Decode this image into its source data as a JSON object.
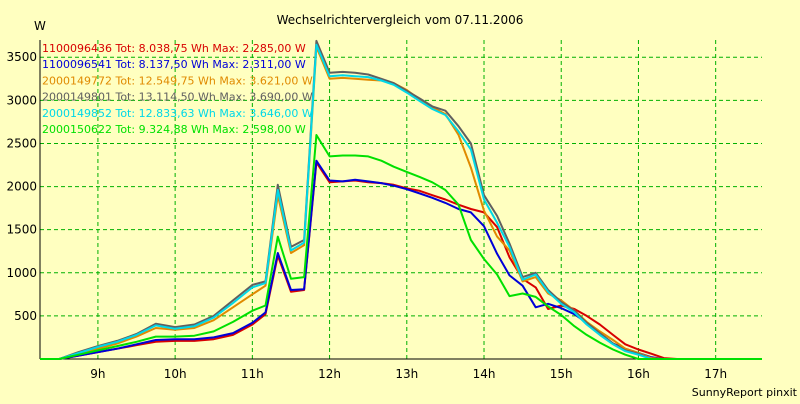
{
  "chart_data": {
    "type": "line",
    "title": "Wechselrichtervergleich vom 07.11.2006",
    "ylabel": "W",
    "footer": "SunnyReport pinxit",
    "xlim": [
      8.25,
      17.6
    ],
    "ylim": [
      0,
      3700
    ],
    "y_ticks": [
      500,
      1000,
      1500,
      2000,
      2500,
      3000,
      3500
    ],
    "x_ticks": [
      {
        "value": 9,
        "label": "9h"
      },
      {
        "value": 10,
        "label": "10h"
      },
      {
        "value": 11,
        "label": "11h"
      },
      {
        "value": 12,
        "label": "12h"
      },
      {
        "value": 13,
        "label": "13h"
      },
      {
        "value": 14,
        "label": "14h"
      },
      {
        "value": 15,
        "label": "15h"
      },
      {
        "value": 16,
        "label": "16h"
      },
      {
        "value": 17,
        "label": "17h"
      }
    ],
    "grid": true,
    "legend_position": "top-left",
    "x": [
      8.25,
      8.5,
      8.75,
      9.0,
      9.25,
      9.5,
      9.75,
      10.0,
      10.25,
      10.5,
      10.75,
      11.0,
      11.17,
      11.33,
      11.5,
      11.67,
      11.83,
      12.0,
      12.17,
      12.33,
      12.5,
      12.67,
      12.83,
      13.0,
      13.17,
      13.33,
      13.5,
      13.67,
      13.83,
      14.0,
      14.17,
      14.33,
      14.5,
      14.67,
      14.83,
      15.0,
      15.17,
      15.33,
      15.5,
      15.67,
      15.83,
      16.0,
      16.17,
      16.33,
      16.5,
      16.67,
      16.83,
      17.0,
      17.17,
      17.33,
      17.6
    ],
    "series": [
      {
        "name": "1100096436",
        "legend": "1100096436 Tot: 8.038,75 Wh Max: 2.285,00 W",
        "color": "#d80000",
        "values": [
          0,
          0,
          40,
          80,
          120,
          160,
          200,
          210,
          210,
          230,
          280,
          400,
          520,
          1200,
          780,
          800,
          2280,
          2050,
          2060,
          2070,
          2050,
          2040,
          2020,
          1980,
          1950,
          1900,
          1850,
          1790,
          1740,
          1700,
          1530,
          1180,
          930,
          830,
          580,
          620,
          580,
          500,
          400,
          280,
          170,
          110,
          60,
          10,
          0,
          0,
          0,
          0,
          0,
          0,
          0
        ]
      },
      {
        "name": "1100096541",
        "legend": "1100096541 Tot: 8.137,50 Wh Max: 2.311,00 W",
        "color": "#0000d8",
        "values": [
          0,
          0,
          40,
          80,
          120,
          170,
          220,
          230,
          230,
          250,
          300,
          420,
          540,
          1230,
          800,
          810,
          2300,
          2070,
          2060,
          2080,
          2060,
          2040,
          2010,
          1970,
          1920,
          1870,
          1810,
          1740,
          1700,
          1540,
          1220,
          970,
          850,
          600,
          640,
          590,
          520,
          420,
          300,
          180,
          120,
          70,
          20,
          0,
          0,
          0,
          0,
          0,
          0,
          0,
          0
        ]
      },
      {
        "name": "2000149772",
        "legend": "2000149772 Tot: 12.549,75 Wh Max: 3.621,00 W",
        "color": "#e08a00",
        "values": [
          0,
          0,
          60,
          120,
          180,
          260,
          360,
          340,
          360,
          450,
          600,
          750,
          850,
          1900,
          1230,
          1320,
          3620,
          3250,
          3260,
          3250,
          3240,
          3230,
          3200,
          3120,
          3010,
          2920,
          2840,
          2600,
          2220,
          1720,
          1420,
          1260,
          900,
          950,
          760,
          680,
          560,
          430,
          320,
          220,
          120,
          70,
          10,
          0,
          0,
          0,
          0,
          0,
          0,
          0,
          0
        ]
      },
      {
        "name": "2000149801",
        "legend": "2000149801 Tot: 13.114,50 Wh Max: 3.690,00 W",
        "color": "#606060",
        "values": [
          0,
          0,
          80,
          150,
          210,
          290,
          410,
          370,
          400,
          500,
          680,
          860,
          900,
          2020,
          1300,
          1380,
          3690,
          3320,
          3330,
          3320,
          3300,
          3250,
          3200,
          3110,
          3020,
          2930,
          2880,
          2700,
          2500,
          1900,
          1660,
          1340,
          950,
          1000,
          800,
          660,
          560,
          420,
          300,
          180,
          100,
          60,
          0,
          0,
          0,
          0,
          0,
          0,
          0,
          0,
          0
        ]
      },
      {
        "name": "2000149852",
        "legend": "2000149852 Tot: 12.833,63 Wh Max: 3.646,00 W",
        "color": "#00d8e8",
        "values": [
          0,
          0,
          70,
          140,
          200,
          280,
          390,
          350,
          380,
          480,
          650,
          830,
          880,
          1960,
          1260,
          1350,
          3646,
          3280,
          3290,
          3280,
          3270,
          3230,
          3180,
          3090,
          2990,
          2900,
          2830,
          2640,
          2430,
          1850,
          1580,
          1300,
          920,
          980,
          780,
          640,
          540,
          400,
          280,
          170,
          90,
          50,
          0,
          0,
          0,
          0,
          0,
          0,
          0,
          0,
          0
        ]
      },
      {
        "name": "2000150622",
        "legend": "2000150622 Tot: 9.324,88 Wh Max: 2.598,00 W",
        "color": "#00e000",
        "values": [
          0,
          0,
          50,
          100,
          150,
          200,
          260,
          260,
          270,
          320,
          430,
          560,
          620,
          1420,
          930,
          950,
          2598,
          2350,
          2360,
          2360,
          2350,
          2300,
          2230,
          2170,
          2110,
          2050,
          1960,
          1790,
          1380,
          1160,
          980,
          730,
          760,
          720,
          610,
          510,
          380,
          280,
          190,
          110,
          50,
          0,
          0,
          0,
          0,
          0,
          0,
          0,
          0,
          0,
          0
        ]
      }
    ]
  }
}
